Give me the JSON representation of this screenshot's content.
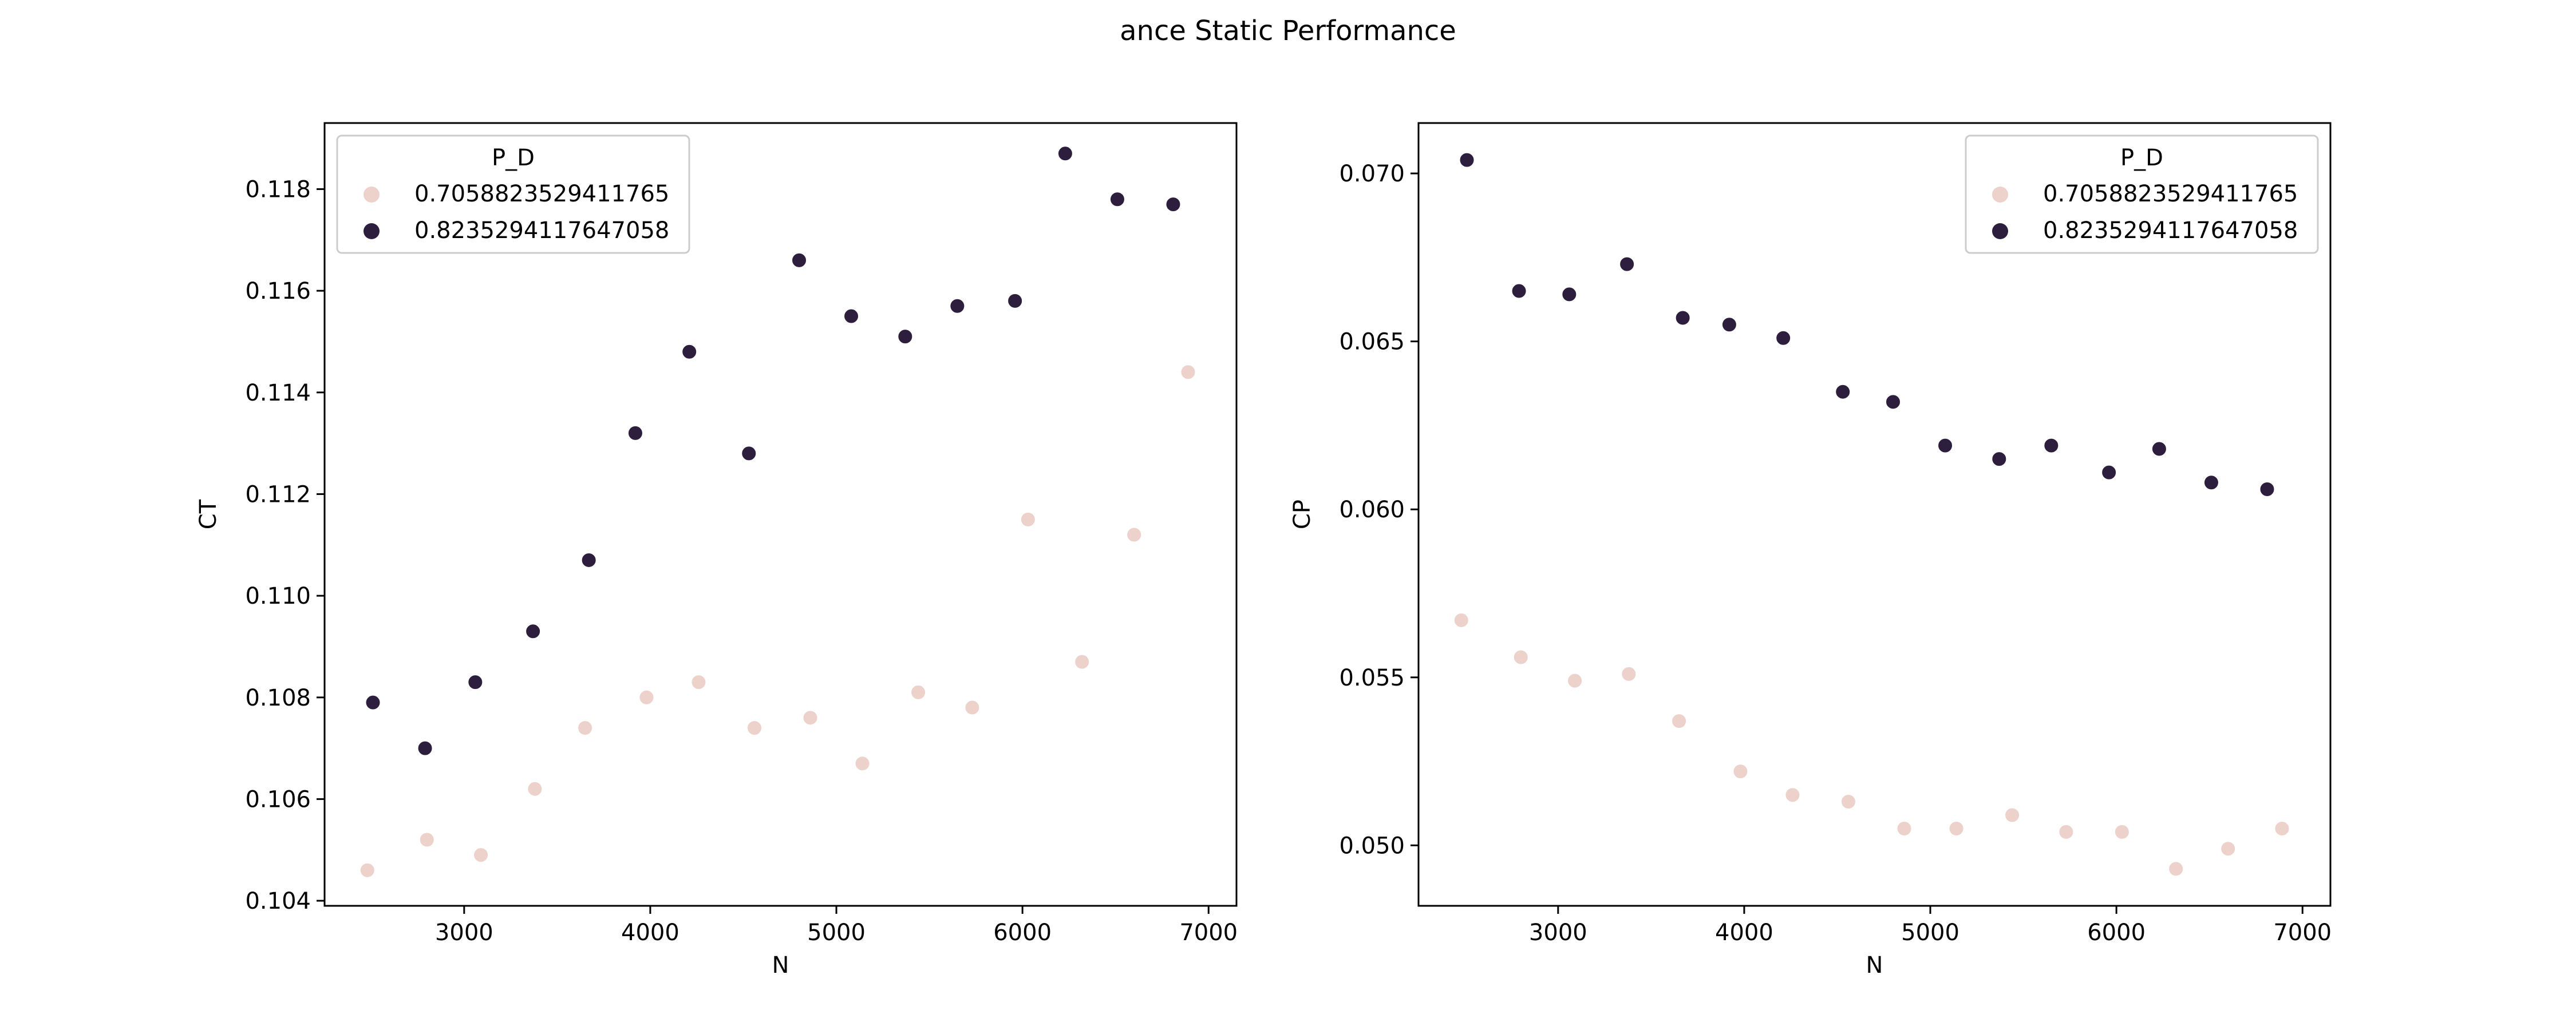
{
  "figure_title": "ance Static Performance",
  "colors": {
    "series_light": "#edd1cb",
    "series_dark": "#2d1e3e"
  },
  "chart_data": [
    {
      "type": "scatter",
      "xlabel": "N",
      "ylabel": "CT",
      "xlim": [
        2250,
        7150
      ],
      "ylim": [
        0.1039,
        0.1193
      ],
      "xticks": [
        3000,
        4000,
        5000,
        6000,
        7000
      ],
      "xtick_labels": [
        "3000",
        "4000",
        "5000",
        "6000",
        "7000"
      ],
      "yticks": [
        0.104,
        0.106,
        0.108,
        0.11,
        0.112,
        0.114,
        0.116,
        0.118
      ],
      "ytick_labels": [
        "0.104",
        "0.106",
        "0.108",
        "0.110",
        "0.112",
        "0.114",
        "0.116",
        "0.118"
      ],
      "grid": false,
      "legend": {
        "title": "P_D",
        "placement": "top-left"
      },
      "series": [
        {
          "name": "0.7058823529411765",
          "color": "#edd1cb",
          "x": [
            2480,
            2800,
            3090,
            3380,
            3650,
            3980,
            4260,
            4560,
            4860,
            5140,
            5440,
            5730,
            6030,
            6320,
            6600,
            6890
          ],
          "y": [
            0.1046,
            0.1052,
            0.1049,
            0.1062,
            0.1074,
            0.108,
            0.1083,
            0.1074,
            0.1076,
            0.1067,
            0.1081,
            0.1078,
            0.1115,
            0.1087,
            0.1112,
            0.1144
          ]
        },
        {
          "name": "0.8235294117647058",
          "color": "#2d1e3e",
          "x": [
            2510,
            2790,
            3060,
            3370,
            3670,
            3920,
            4210,
            4530,
            4800,
            5080,
            5370,
            5650,
            5960,
            6230,
            6510,
            6810
          ],
          "y": [
            0.1079,
            0.107,
            0.1083,
            0.1093,
            0.1107,
            0.1132,
            0.1148,
            0.1128,
            0.1166,
            0.1155,
            0.1151,
            0.1157,
            0.1158,
            0.1187,
            0.1178,
            0.1177
          ]
        }
      ]
    },
    {
      "type": "scatter",
      "xlabel": "N",
      "ylabel": "CP",
      "xlim": [
        2250,
        7150
      ],
      "ylim": [
        0.0482,
        0.0715
      ],
      "xticks": [
        3000,
        4000,
        5000,
        6000,
        7000
      ],
      "xtick_labels": [
        "3000",
        "4000",
        "5000",
        "6000",
        "7000"
      ],
      "yticks": [
        0.05,
        0.055,
        0.06,
        0.065,
        0.07
      ],
      "ytick_labels": [
        "0.050",
        "0.055",
        "0.060",
        "0.065",
        "0.070"
      ],
      "grid": false,
      "legend": {
        "title": "P_D",
        "placement": "top-right"
      },
      "series": [
        {
          "name": "0.7058823529411765",
          "color": "#edd1cb",
          "x": [
            2480,
            2800,
            3090,
            3380,
            3650,
            3980,
            4260,
            4560,
            4860,
            5140,
            5440,
            5730,
            6030,
            6320,
            6600,
            6890
          ],
          "y": [
            0.0567,
            0.0556,
            0.0549,
            0.0551,
            0.0537,
            0.0522,
            0.0515,
            0.0513,
            0.0505,
            0.0505,
            0.0509,
            0.0504,
            0.0504,
            0.0493,
            0.0499,
            0.0505
          ]
        },
        {
          "name": "0.8235294117647058",
          "color": "#2d1e3e",
          "x": [
            2510,
            2790,
            3060,
            3370,
            3670,
            3920,
            4210,
            4530,
            4800,
            5080,
            5370,
            5650,
            5960,
            6230,
            6510,
            6810
          ],
          "y": [
            0.0704,
            0.0665,
            0.0664,
            0.0673,
            0.0657,
            0.0655,
            0.0651,
            0.0635,
            0.0632,
            0.0619,
            0.0615,
            0.0619,
            0.0611,
            0.0618,
            0.0608,
            0.0606
          ]
        }
      ]
    }
  ]
}
